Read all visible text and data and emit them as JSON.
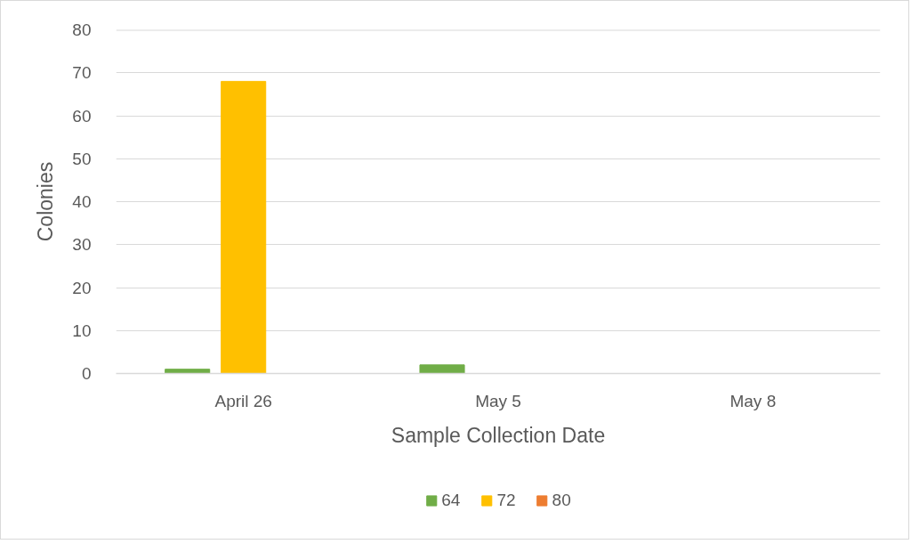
{
  "chart_data": {
    "type": "bar",
    "xlabel": "Sample Collection Date",
    "ylabel": "Colonies",
    "categories": [
      "April 26",
      "May 5",
      "May 8"
    ],
    "series": [
      {
        "name": "64",
        "color": "#70ad47",
        "values": [
          1,
          2,
          0
        ]
      },
      {
        "name": "72",
        "color": "#ffc000",
        "values": [
          68,
          0,
          0
        ]
      },
      {
        "name": "80",
        "color": "#ed7d31",
        "values": [
          0,
          0,
          0
        ]
      }
    ],
    "ylim": [
      0,
      80
    ],
    "yticks": [
      0,
      10,
      20,
      30,
      40,
      50,
      60,
      70,
      80
    ],
    "grid": "y",
    "legend": "bottom"
  }
}
